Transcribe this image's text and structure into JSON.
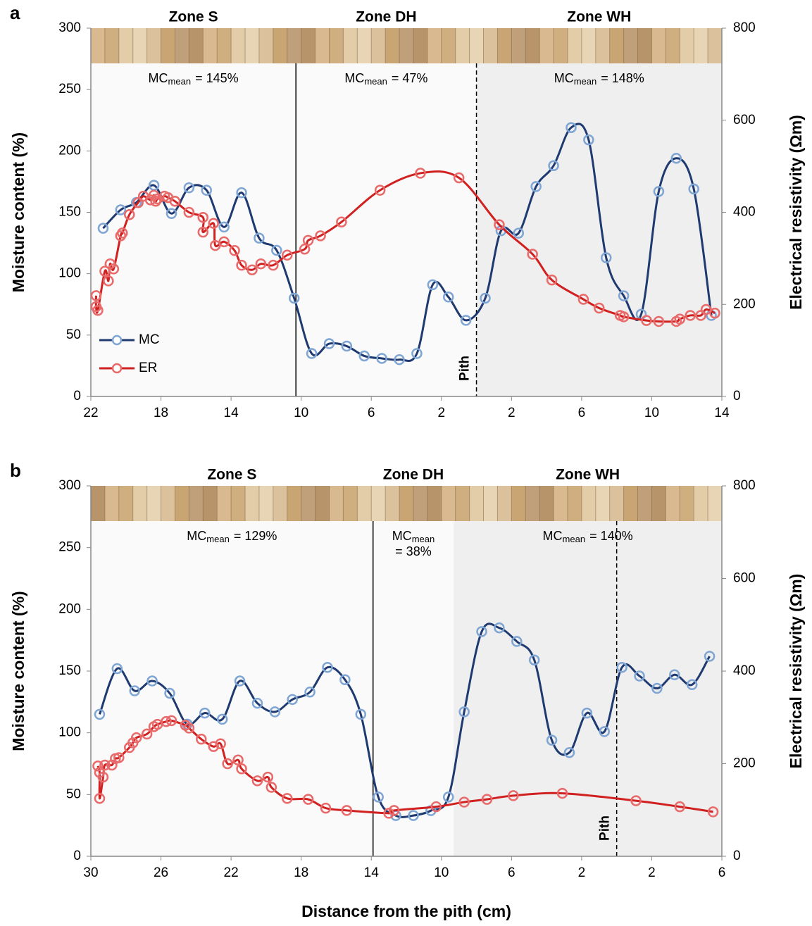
{
  "chart_data": [
    {
      "type": "line",
      "panel_label": "a",
      "ylabel": "Moisture content (%)",
      "y2label": "Electrical resistivity (Ωm)",
      "xlim": [
        -22,
        14
      ],
      "xticks": [
        {
          "value": -22,
          "label": "22"
        },
        {
          "value": -18,
          "label": "18"
        },
        {
          "value": -14,
          "label": "14"
        },
        {
          "value": -10,
          "label": "10"
        },
        {
          "value": -6,
          "label": "6"
        },
        {
          "value": -2,
          "label": "2"
        },
        2,
        6,
        10,
        14
      ],
      "ylim": [
        0,
        300
      ],
      "yticks": [
        0,
        50,
        100,
        150,
        200,
        250,
        300
      ],
      "y2lim": [
        0,
        800
      ],
      "y2ticks": [
        0,
        200,
        400,
        600,
        800
      ],
      "zone_edges": [
        -10.3,
        0
      ],
      "mc_label": "MC",
      "mc_sub": "mean",
      "pith_label": "Pith",
      "zones": [
        {
          "label": "Zone S",
          "mc_mean": "= 145%"
        },
        {
          "label": "Zone DH",
          "mc_mean": "= 47%"
        },
        {
          "label": "Zone WH",
          "mc_mean": "= 148%"
        }
      ],
      "legend": "lower left",
      "series": [
        {
          "name": "MC",
          "color": "#1f3a70",
          "marker_color": "#7fa5d3",
          "axis": "y",
          "x": [
            -21.3,
            -20.3,
            -19.4,
            -18.4,
            -17.4,
            -16.4,
            -15.4,
            -14.4,
            -13.4,
            -12.4,
            -11.4,
            -10.4,
            -9.4,
            -8.4,
            -7.4,
            -6.4,
            -5.4,
            -4.4,
            -3.4,
            -2.5,
            -1.6,
            -0.6,
            0.5,
            1.4,
            2.4,
            3.4,
            4.4,
            5.4,
            6.4,
            7.4,
            8.4,
            9.4,
            10.4,
            11.4,
            12.4,
            13.4
          ],
          "values": [
            137,
            152,
            158,
            172,
            149,
            170,
            168,
            138,
            166,
            129,
            119,
            80,
            35,
            43,
            41,
            33,
            31,
            30,
            35,
            91,
            81,
            62,
            80,
            135,
            133,
            171,
            188,
            219,
            209,
            113,
            82,
            67,
            167,
            194,
            169,
            66
          ]
        },
        {
          "name": "ER",
          "color": "#d02020",
          "marker_color": "#e86a6a",
          "axis": "y2",
          "x": [
            -21.7,
            -21.7,
            -21.6,
            -21.2,
            -21.0,
            -20.9,
            -20.7,
            -20.3,
            -20.2,
            -19.8,
            -19.3,
            -19.0,
            -18.6,
            -18.4,
            -18.3,
            -18.2,
            -17.8,
            -17.6,
            -17.2,
            -16.4,
            -15.6,
            -15.6,
            -15.0,
            -14.9,
            -14.4,
            -13.8,
            -13.4,
            -12.8,
            -12.3,
            -11.6,
            -10.8,
            -9.8,
            -9.6,
            -8.9,
            -7.7,
            -5.5,
            -3.2,
            -1.0,
            1.3,
            3.2,
            4.3,
            6.1,
            7.0,
            8.2,
            8.4,
            9.7,
            10.4,
            11.4,
            11.6,
            12.2,
            12.8,
            13.1,
            13.6
          ],
          "values": [
            219,
            195,
            187,
            272,
            251,
            288,
            277,
            349,
            355,
            395,
            421,
            435,
            427,
            437,
            424,
            429,
            435,
            432,
            424,
            400,
            389,
            357,
            376,
            328,
            336,
            317,
            285,
            275,
            288,
            285,
            307,
            320,
            339,
            349,
            379,
            448,
            485,
            475,
            373,
            309,
            253,
            211,
            192,
            176,
            173,
            165,
            163,
            163,
            168,
            176,
            176,
            189,
            181
          ]
        }
      ]
    },
    {
      "type": "line",
      "panel_label": "b",
      "ylabel": "Moisture content (%)",
      "y2label": "Electrical resistivity (Ωm)",
      "xlabel": "Distance from the pith (cm)",
      "xlim": [
        -30,
        6
      ],
      "xticks": [
        {
          "value": -30,
          "label": "30"
        },
        {
          "value": -26,
          "label": "26"
        },
        {
          "value": -22,
          "label": "22"
        },
        {
          "value": -18,
          "label": "18"
        },
        {
          "value": -14,
          "label": "14"
        },
        {
          "value": -10,
          "label": "10"
        },
        {
          "value": -6,
          "label": "6"
        },
        {
          "value": -2,
          "label": "2"
        },
        2,
        6
      ],
      "ylim": [
        0,
        300
      ],
      "yticks": [
        0,
        50,
        100,
        150,
        200,
        250,
        300
      ],
      "y2lim": [
        0,
        800
      ],
      "y2ticks": [
        0,
        200,
        400,
        600,
        800
      ],
      "zone_edges": [
        -13.9,
        -9.3
      ],
      "mc_label": "MC",
      "mc_sub": "mean",
      "pith_label": "Pith",
      "zones": [
        {
          "label": "Zone S",
          "mc_mean": "= 129%"
        },
        {
          "label": "Zone DH",
          "mc_mean": "= 38%",
          "wrapped": true
        },
        {
          "label": "Zone WH",
          "mc_mean": "= 140%"
        }
      ],
      "series": [
        {
          "color": "#1f3a70",
          "marker_color": "#7fa5d3",
          "axis": "y",
          "x": [
            -29.5,
            -28.5,
            -27.5,
            -26.5,
            -25.5,
            -24.5,
            -23.5,
            -22.5,
            -21.5,
            -20.5,
            -19.5,
            -18.5,
            -17.5,
            -16.5,
            -15.5,
            -14.6,
            -13.6,
            -12.6,
            -11.6,
            -10.6,
            -9.6,
            -8.7,
            -7.7,
            -6.7,
            -5.7,
            -4.7,
            -3.7,
            -2.7,
            -1.7,
            -0.7,
            0.3,
            1.3,
            2.3,
            3.3,
            4.3,
            5.3
          ],
          "values": [
            115,
            152,
            134,
            142,
            132,
            107,
            116,
            111,
            142,
            124,
            117,
            127,
            133,
            153,
            143,
            115,
            48,
            33,
            33,
            37,
            48,
            117,
            182,
            185,
            174,
            159,
            94,
            84,
            116,
            101,
            153,
            146,
            136,
            147,
            139,
            162
          ]
        },
        {
          "color": "#d02020",
          "marker_color": "#e86a6a",
          "axis": "y2",
          "x": [
            -29.6,
            -29.5,
            -29.5,
            -29.3,
            -29.2,
            -28.8,
            -28.6,
            -28.4,
            -27.8,
            -27.6,
            -27.4,
            -26.8,
            -26.4,
            -26.2,
            -25.7,
            -25.4,
            -24.6,
            -24.4,
            -23.7,
            -23.0,
            -22.6,
            -22.2,
            -21.6,
            -21.4,
            -20.5,
            -19.9,
            -19.7,
            -18.8,
            -17.6,
            -16.6,
            -15.4,
            -13.0,
            -12.7,
            -10.3,
            -8.7,
            -7.4,
            -5.9,
            -3.1,
            1.1,
            3.6,
            5.5
          ],
          "values": [
            195,
            181,
            125,
            171,
            197,
            197,
            211,
            213,
            235,
            245,
            256,
            264,
            280,
            285,
            291,
            293,
            283,
            277,
            253,
            237,
            243,
            200,
            208,
            189,
            163,
            171,
            149,
            125,
            123,
            104,
            99,
            93,
            99,
            107,
            117,
            123,
            131,
            136,
            120,
            107,
            96
          ]
        }
      ]
    }
  ]
}
